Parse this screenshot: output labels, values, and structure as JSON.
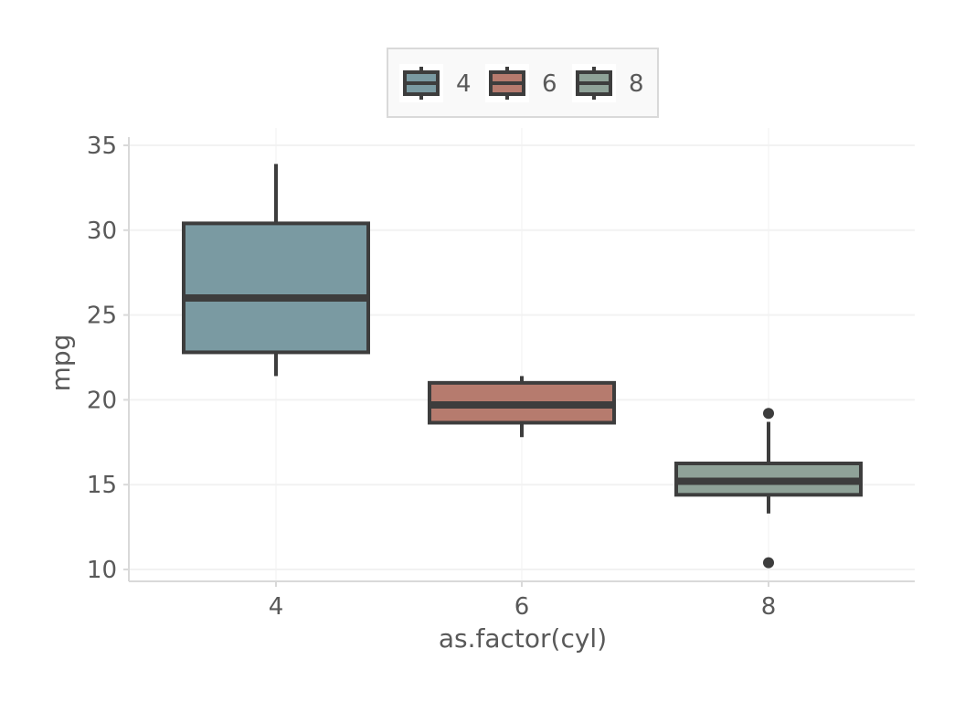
{
  "chart_data": {
    "type": "boxplot",
    "title": "",
    "xlabel": "as.factor(cyl)",
    "ylabel": "mpg",
    "categories": [
      "4",
      "6",
      "8"
    ],
    "ylim": [
      9.3,
      35
    ],
    "yticks": [
      10,
      15,
      20,
      25,
      30,
      35
    ],
    "grid": true,
    "legend_position": "top",
    "legend": [
      "4",
      "6",
      "8"
    ],
    "colors": {
      "4": "#7a9aa2",
      "6": "#b67b6e",
      "8": "#8fa298",
      "outline": "#3d3d3d",
      "grid": "#f2f2f2",
      "axis": "#d9d9d9",
      "text": "#595959",
      "legend_bg": "#f9f9f9",
      "legend_border": "#d9d9d9"
    },
    "boxes": [
      {
        "category": "4",
        "whisker_low": 21.4,
        "q1": 22.8,
        "median": 26.0,
        "q3": 30.4,
        "whisker_high": 33.9,
        "outliers": []
      },
      {
        "category": "6",
        "whisker_low": 17.8,
        "q1": 18.65,
        "median": 19.7,
        "q3": 21.0,
        "whisker_high": 21.4,
        "outliers": []
      },
      {
        "category": "8",
        "whisker_low": 13.3,
        "q1": 14.4,
        "median": 15.2,
        "q3": 16.25,
        "whisker_high": 18.7,
        "outliers": [
          19.2,
          10.4
        ]
      }
    ]
  }
}
